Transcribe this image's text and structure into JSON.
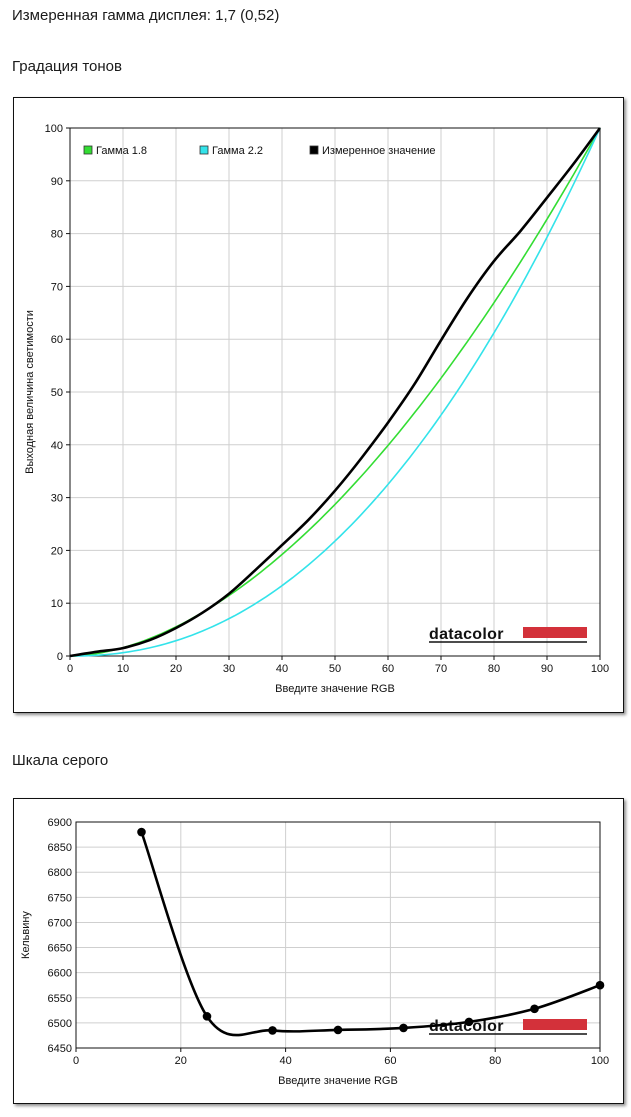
{
  "header": {
    "measured_gamma": "Измеренная гамма дисплея: 1,7 (0,52)",
    "tone_section_title": "Градация тонов",
    "gray_section_title": "Шкала серого"
  },
  "branding": {
    "logo_text": "datacolor",
    "accent_color": "#d3313a"
  },
  "chart_data": [
    {
      "type": "line",
      "title": "",
      "xlabel": "Введите значение RGB",
      "ylabel": "Выходная величина светимости",
      "xlim": [
        0,
        100
      ],
      "ylim": [
        0,
        100
      ],
      "x_ticks": [
        0,
        10,
        20,
        30,
        40,
        50,
        60,
        70,
        80,
        90,
        100
      ],
      "y_ticks": [
        0,
        10,
        20,
        30,
        40,
        50,
        60,
        70,
        80,
        90,
        100
      ],
      "grid": true,
      "legend_position": "top-left",
      "series": [
        {
          "name": "Гамма 1.8",
          "color": "#33dd33",
          "kind": "gamma",
          "gamma": 1.8
        },
        {
          "name": "Гамма 2.2",
          "color": "#33e3ea",
          "kind": "gamma",
          "gamma": 2.2
        },
        {
          "name": "Измеренное значение",
          "color": "#000000",
          "kind": "points",
          "x": [
            0,
            5,
            10,
            15,
            20,
            25,
            30,
            35,
            40,
            45,
            50,
            55,
            60,
            65,
            70,
            75,
            80,
            85,
            90,
            95,
            100
          ],
          "y": [
            0,
            0.8,
            1.5,
            3,
            5.3,
            8.2,
            11.8,
            16.3,
            21,
            25.8,
            31.3,
            37.5,
            44.2,
            51.5,
            59.8,
            67.8,
            74.8,
            80.5,
            86.8,
            93.2,
            100
          ]
        }
      ]
    },
    {
      "type": "line",
      "title": "",
      "xlabel": "Введите значение RGB",
      "ylabel": "Кельвину",
      "xlim": [
        0,
        100
      ],
      "ylim": [
        6450,
        6900
      ],
      "x_ticks": [
        0,
        20,
        40,
        60,
        80,
        100
      ],
      "y_ticks": [
        6450,
        6500,
        6550,
        6600,
        6650,
        6700,
        6750,
        6800,
        6850,
        6900
      ],
      "grid": true,
      "series": [
        {
          "color": "#000000",
          "x": [
            12.5,
            25,
            37.5,
            50,
            62.5,
            75,
            87.5,
            100
          ],
          "y": [
            6880,
            6513,
            6485,
            6486,
            6490,
            6502,
            6528,
            6575
          ]
        }
      ]
    }
  ]
}
